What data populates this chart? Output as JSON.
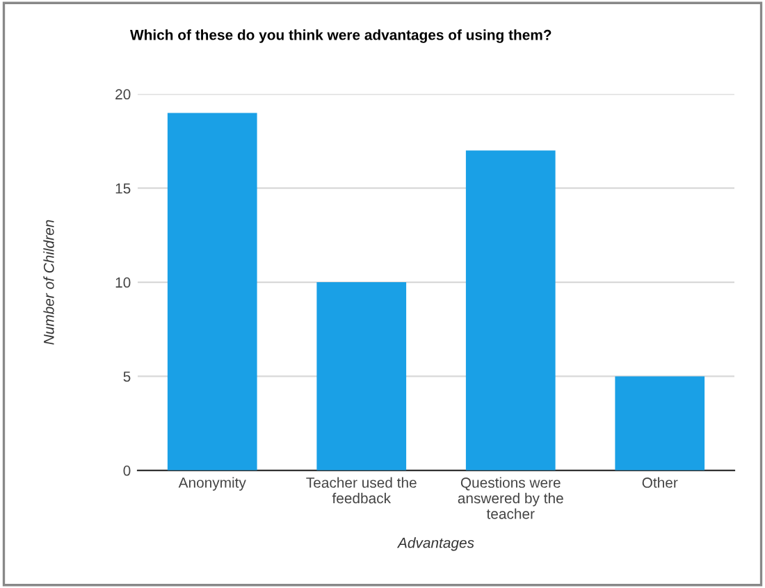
{
  "chart_data": {
    "type": "bar",
    "title": "Which of these do you think were advantages of using them?",
    "categories": [
      "Anonymity",
      "Teacher used the feedback",
      "Questions were answered by the teacher",
      "Other"
    ],
    "values": [
      19,
      10,
      17,
      5
    ],
    "color": "#1aa0e6",
    "xlabel": "Advantages",
    "ylabel": "Number of Children",
    "ylim": [
      0,
      20
    ],
    "yticks": [
      0,
      5,
      10,
      15,
      20
    ],
    "grid": "y",
    "legend": false
  }
}
